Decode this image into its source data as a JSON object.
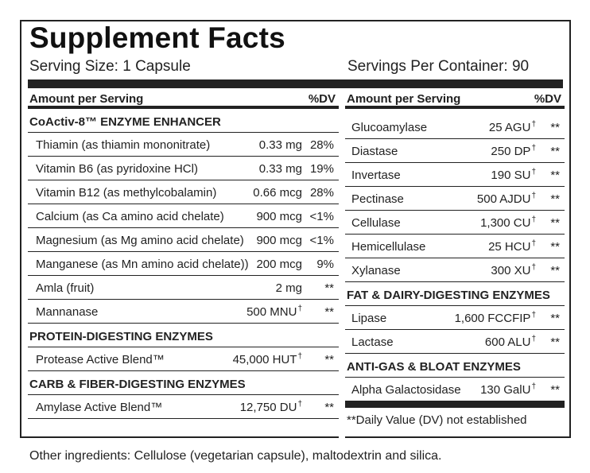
{
  "title": "Supplement Facts",
  "serving_size": "Serving Size: 1 Capsule",
  "servings_per_container": "Servings Per Container: 90",
  "left": {
    "header": {
      "amount": "Amount per Serving",
      "dv": "%DV"
    },
    "sections": [
      {
        "title": "CoActiv-8™ ENZYME ENHANCER",
        "rows": [
          {
            "name": "Thiamin (as thiamin mononitrate)",
            "amount": "0.33 mg",
            "dagger": "",
            "dv": "28%"
          },
          {
            "name": "Vitamin B6 (as pyridoxine HCl)",
            "amount": "0.33 mg",
            "dagger": "",
            "dv": "19%"
          },
          {
            "name": "Vitamin B12 (as methylcobalamin)",
            "amount": "0.66 mcg",
            "dagger": "",
            "dv": "28%"
          },
          {
            "name": "Calcium (as Ca amino acid chelate)",
            "amount": "900 mcg",
            "dagger": "",
            "dv": "<1%"
          },
          {
            "name": "Magnesium (as Mg amino acid chelate)",
            "amount": "900 mcg",
            "dagger": "",
            "dv": "<1%"
          },
          {
            "name": "Manganese (as Mn amino acid chelate))",
            "amount": "200 mcg",
            "dagger": "",
            "dv": "9%"
          },
          {
            "name": "Amla (fruit)",
            "amount": "2 mg",
            "dagger": "",
            "dv": "**"
          },
          {
            "name": "Mannanase",
            "amount": "500 MNU",
            "dagger": "†",
            "dv": "**"
          }
        ]
      },
      {
        "title": "PROTEIN-DIGESTING ENZYMES",
        "rows": [
          {
            "name": "Protease Active Blend™",
            "amount": "45,000 HUT",
            "dagger": "†",
            "dv": "**"
          }
        ]
      },
      {
        "title": "CARB & FIBER-DIGESTING ENZYMES",
        "rows": [
          {
            "name": "Amylase Active Blend™",
            "amount": "12,750 DU",
            "dagger": "†",
            "dv": "**"
          }
        ]
      }
    ]
  },
  "right": {
    "header": {
      "amount": "Amount per Serving",
      "dv": "%DV"
    },
    "top_rows": [
      {
        "name": "Glucoamylase",
        "amount": "25 AGU",
        "dagger": "†",
        "dv": "**"
      },
      {
        "name": "Diastase",
        "amount": "250 DP",
        "dagger": "†",
        "dv": "**"
      },
      {
        "name": "Invertase",
        "amount": "190 SU",
        "dagger": "†",
        "dv": "**"
      },
      {
        "name": "Pectinase",
        "amount": "500 AJDU",
        "dagger": "†",
        "dv": "**"
      },
      {
        "name": "Cellulase",
        "amount": "1,300 CU",
        "dagger": "†",
        "dv": "**"
      },
      {
        "name": "Hemicellulase",
        "amount": "25 HCU",
        "dagger": "†",
        "dv": "**"
      },
      {
        "name": "Xylanase",
        "amount": "300 XU",
        "dagger": "†",
        "dv": "**"
      }
    ],
    "sections": [
      {
        "title": "FAT & DAIRY-DIGESTING ENZYMES",
        "rows": [
          {
            "name": "Lipase",
            "amount": "1,600 FCCFIP",
            "dagger": "†",
            "dv": "**"
          },
          {
            "name": "Lactase",
            "amount": "600 ALU",
            "dagger": "†",
            "dv": "**"
          }
        ]
      },
      {
        "title": "ANTI-GAS & BLOAT ENZYMES",
        "rows": [
          {
            "name": "Alpha Galactosidase",
            "amount": "130 GalU",
            "dagger": "†",
            "dv": "**"
          }
        ]
      }
    ],
    "footnote": "**Daily Value (DV) not established"
  },
  "other_ingredients": "Other ingredients: Cellulose (vegetarian capsule), maltodextrin and silica."
}
